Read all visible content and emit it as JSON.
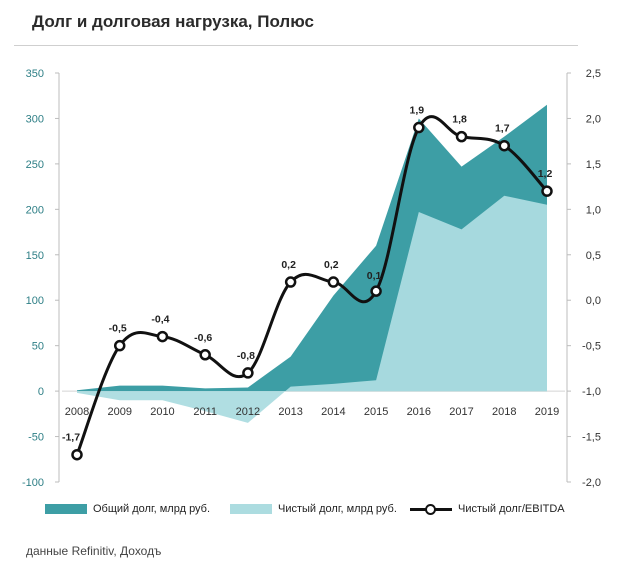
{
  "title": "Долг и долговая нагрузка, Полюс",
  "source": "данные Refinitiv, Доходъ",
  "colors": {
    "total": "#3d9ea5",
    "net": "#acdce0",
    "ratio": "#111111",
    "axis_text": "#2e7f86"
  },
  "chart_data": {
    "type": "area+line",
    "categories": [
      "2008",
      "2009",
      "2010",
      "2011",
      "2012",
      "2013",
      "2014",
      "2015",
      "2016",
      "2017",
      "2018",
      "2019"
    ],
    "series": [
      {
        "name": "Общий долг, млрд руб.",
        "type": "area",
        "axis": "left",
        "values": [
          1,
          6,
          6,
          3,
          4,
          38,
          105,
          160,
          300,
          247,
          280,
          315
        ]
      },
      {
        "name": "Чистый долг, млрд руб.",
        "type": "area",
        "axis": "left",
        "values": [
          -2,
          -10,
          -10,
          -22,
          -35,
          5,
          8,
          12,
          197,
          178,
          215,
          205
        ]
      },
      {
        "name": "Чистый долг/EBITDA",
        "type": "line",
        "axis": "right",
        "values": [
          -1.7,
          -0.5,
          -0.4,
          -0.6,
          -0.8,
          0.2,
          0.2,
          0.1,
          1.9,
          1.8,
          1.7,
          1.2
        ],
        "labels": [
          "-1,7",
          "-0,5",
          "-0,4",
          "-0,6",
          "-0,8",
          "0,2",
          "0,2",
          "0,1",
          "1,9",
          "1,8",
          "1,7",
          "1,2"
        ]
      }
    ],
    "y_left": {
      "min": -100,
      "max": 350,
      "ticks": [
        350,
        300,
        250,
        200,
        150,
        100,
        50,
        0,
        -50,
        -100
      ],
      "tick_labels": [
        "350",
        "300",
        "250",
        "200",
        "150",
        "100",
        "50",
        "0",
        "-50",
        "-100"
      ]
    },
    "y_right": {
      "min": -2.0,
      "max": 2.5,
      "ticks": [
        2.5,
        2.0,
        1.5,
        1.0,
        0.5,
        0.0,
        -0.5,
        -1.0,
        -1.5,
        -2.0
      ],
      "tick_labels": [
        "2,5",
        "2,0",
        "1,5",
        "1,0",
        "0,5",
        "0,0",
        "-0,5",
        "-1,0",
        "-1,5",
        "-2,0"
      ]
    },
    "legend": [
      "Общий долг, млрд руб.",
      "Чистый долг, млрд руб.",
      "Чистый долг/EBITDA"
    ],
    "legend_position": "bottom"
  }
}
